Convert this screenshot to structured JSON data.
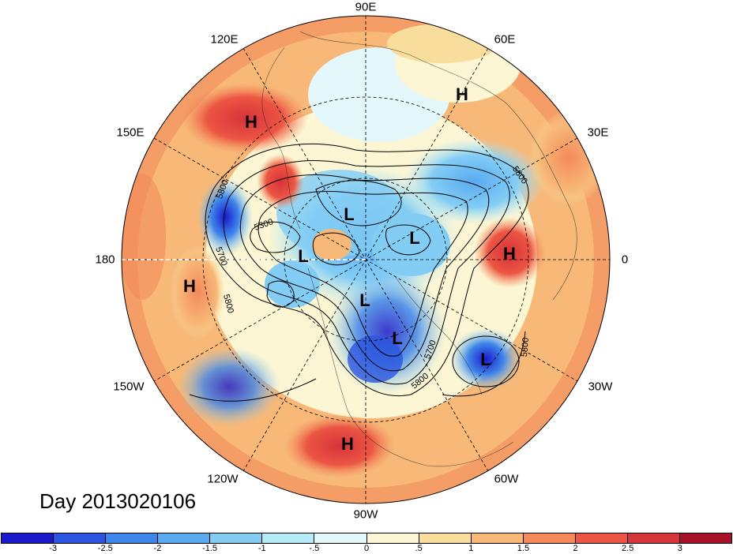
{
  "title": "Day 2013020106",
  "lon_labels": {
    "n90E": "90E",
    "n120E": "120E",
    "n60E": "60E",
    "n150E": "150E",
    "n30E": "30E",
    "n180": "180",
    "n0": "0",
    "n150W": "150W",
    "n30W": "30W",
    "n120W": "120W",
    "n60W": "60W",
    "n90W": "90W"
  },
  "pressure_centers": [
    {
      "label": "H",
      "name": "east-asia-high"
    },
    {
      "label": "H",
      "name": "europe-high"
    },
    {
      "label": "H",
      "name": "atlantic-high"
    },
    {
      "label": "H",
      "name": "pacific-high"
    },
    {
      "label": "H",
      "name": "mexico-high"
    },
    {
      "label": "L",
      "name": "arctic-low-1"
    },
    {
      "label": "L",
      "name": "arctic-low-2"
    },
    {
      "label": "L",
      "name": "arctic-low-3"
    },
    {
      "label": "L",
      "name": "canada-low"
    },
    {
      "label": "L",
      "name": "us-east-low"
    },
    {
      "label": "L",
      "name": "atlantic-low"
    }
  ],
  "contour_labels": [
    "5800",
    "5300",
    "5700",
    "5800",
    "5800",
    "5700",
    "5800",
    "5800"
  ],
  "colorbar": {
    "colors": [
      "#1a1acc",
      "#2b55e0",
      "#3f86ea",
      "#5aaaf0",
      "#83cdf5",
      "#b4ebf7",
      "#e4f8fb",
      "#fcf6d4",
      "#f9dd9c",
      "#f7b878",
      "#f48a5a",
      "#ec5543",
      "#d6333a",
      "#a8102a"
    ],
    "ticks": [
      "-3",
      "-2.5",
      "-2",
      "-1.5",
      "-1",
      "-.5",
      "0",
      ".5",
      "1",
      "1.5",
      "2",
      "2.5",
      "3"
    ]
  }
}
